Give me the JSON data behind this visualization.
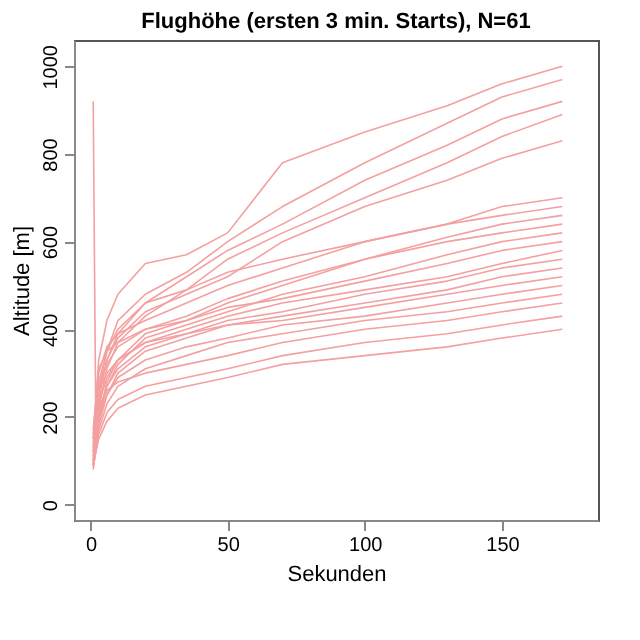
{
  "chart_data": {
    "type": "line",
    "title": "Flughöhe (ersten 3 min. Starts), N=61",
    "xlabel": "Sekunden",
    "ylabel": "Altitude [m]",
    "x": [
      1,
      3,
      6,
      10,
      20,
      35,
      50,
      70,
      100,
      130,
      150,
      172
    ],
    "xlim": [
      -6,
      185
    ],
    "xticks": [
      0,
      50,
      100,
      150
    ],
    "ylim": [
      -35,
      1060
    ],
    "yticks": [
      0,
      200,
      400,
      600,
      800,
      1000
    ],
    "grid": false,
    "legend": false,
    "marker": "none",
    "line_style": "solid",
    "series": [
      {
        "color": "#f4a0a0",
        "values": [
          150,
          330,
          420,
          480,
          550,
          570,
          620,
          780,
          850,
          910,
          960,
          1000
        ]
      },
      {
        "color": "#f4a0a0",
        "values": [
          120,
          260,
          350,
          420,
          480,
          530,
          600,
          680,
          780,
          870,
          930,
          970
        ]
      },
      {
        "color": "#f4a0a0",
        "values": [
          100,
          240,
          330,
          390,
          460,
          520,
          580,
          640,
          740,
          820,
          880,
          920
        ]
      },
      {
        "color": "#f4a0a0",
        "values": [
          90,
          220,
          310,
          370,
          430,
          490,
          560,
          620,
          700,
          780,
          840,
          890
        ]
      },
      {
        "color": "#f4a0a0",
        "values": [
          110,
          250,
          330,
          380,
          440,
          480,
          520,
          600,
          680,
          740,
          790,
          830
        ]
      },
      {
        "color": "#f4a0a0",
        "values": [
          130,
          280,
          350,
          400,
          460,
          490,
          530,
          560,
          600,
          640,
          680,
          700
        ]
      },
      {
        "color": "#f4a0a0",
        "values": [
          160,
          300,
          360,
          390,
          420,
          460,
          500,
          540,
          600,
          640,
          660,
          680
        ]
      },
      {
        "color": "#f4a0a0",
        "values": [
          100,
          200,
          280,
          330,
          390,
          420,
          460,
          500,
          560,
          610,
          640,
          660
        ]
      },
      {
        "color": "#f4a0a0",
        "values": [
          140,
          270,
          320,
          360,
          400,
          430,
          470,
          510,
          560,
          600,
          620,
          640
        ]
      },
      {
        "color": "#f4a0a0",
        "values": [
          90,
          190,
          270,
          320,
          380,
          410,
          440,
          480,
          520,
          570,
          600,
          620
        ]
      },
      {
        "color": "#f4a0a0",
        "values": [
          170,
          310,
          350,
          370,
          400,
          420,
          450,
          470,
          510,
          550,
          580,
          600
        ]
      },
      {
        "color": "#f4a0a0",
        "values": [
          120,
          230,
          290,
          330,
          370,
          400,
          430,
          460,
          490,
          520,
          550,
          580
        ]
      },
      {
        "color": "#f4a0a0",
        "values": [
          100,
          210,
          270,
          310,
          360,
          390,
          420,
          440,
          480,
          510,
          540,
          560
        ]
      },
      {
        "color": "#f4a0a0",
        "values": [
          80,
          180,
          250,
          300,
          350,
          380,
          410,
          430,
          460,
          490,
          520,
          540
        ]
      },
      {
        "color": "#f4a0a0",
        "values": [
          150,
          260,
          300,
          330,
          370,
          390,
          410,
          420,
          450,
          480,
          500,
          520
        ]
      },
      {
        "color": "#f4a0a0",
        "values": [
          110,
          200,
          250,
          290,
          330,
          360,
          380,
          410,
          430,
          460,
          480,
          500
        ]
      },
      {
        "color": "#f4a0a0",
        "values": [
          90,
          170,
          230,
          270,
          310,
          340,
          370,
          390,
          420,
          440,
          460,
          480
        ]
      },
      {
        "color": "#f4a0a0",
        "values": [
          130,
          220,
          260,
          280,
          300,
          320,
          340,
          370,
          400,
          420,
          440,
          460
        ]
      },
      {
        "color": "#f4a0a0",
        "values": [
          85,
          160,
          210,
          240,
          270,
          290,
          310,
          340,
          370,
          390,
          410,
          430
        ]
      },
      {
        "color": "#f4a0a0",
        "values": [
          90,
          150,
          190,
          220,
          250,
          270,
          290,
          320,
          340,
          360,
          380,
          400
        ]
      },
      {
        "color": "#f4a0a0",
        "x": [
          1,
          2,
          4
        ],
        "values": [
          920,
          140,
          260
        ]
      }
    ]
  }
}
